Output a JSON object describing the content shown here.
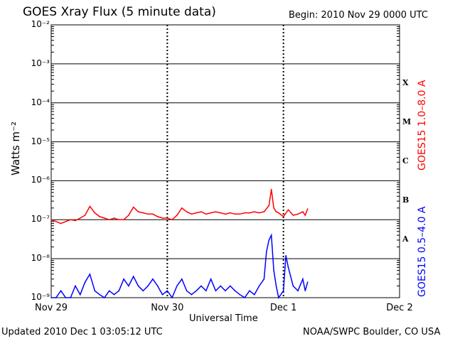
{
  "header": {
    "title": "GOES Xray Flux (5 minute data)",
    "begin": "Begin:  2010 Nov 29 0000 UTC"
  },
  "footer": {
    "updated": "Updated 2010 Dec  1 03:05:12 UTC",
    "credit": "NOAA/SWPC Boulder, CO USA"
  },
  "chart_data": {
    "type": "line",
    "title": "GOES Xray Flux (5 minute data)",
    "xlabel": "Universal Time",
    "ylabel": "Watts m⁻²",
    "y_scale": "log",
    "ylim": [
      1e-09,
      0.01
    ],
    "xlim": [
      0,
      72
    ],
    "x_unit": "hours since 2010 Nov 29 0000 UTC",
    "x_ticks": [
      {
        "x": 0,
        "label": "Nov 29"
      },
      {
        "x": 24,
        "label": "Nov 30"
      },
      {
        "x": 48,
        "label": "Dec 1"
      },
      {
        "x": 72,
        "label": "Dec 2"
      }
    ],
    "y_ticks": [
      {
        "exp": -9,
        "label": "10⁻⁹"
      },
      {
        "exp": -8,
        "label": "10⁻⁸"
      },
      {
        "exp": -7,
        "label": "10⁻⁷"
      },
      {
        "exp": -6,
        "label": "10⁻⁶"
      },
      {
        "exp": -5,
        "label": "10⁻⁵"
      },
      {
        "exp": -4,
        "label": "10⁻⁴"
      },
      {
        "exp": -3,
        "label": "10⁻³"
      },
      {
        "exp": -2,
        "label": "10⁻²"
      }
    ],
    "flare_classes": [
      {
        "label": "X",
        "decade": -4
      },
      {
        "label": "M",
        "decade": -5
      },
      {
        "label": "C",
        "decade": -6
      },
      {
        "label": "B",
        "decade": -7
      },
      {
        "label": "A",
        "decade": -8
      }
    ],
    "grid": true,
    "series": [
      {
        "name": "GOES15 1.0–8.0 A",
        "color": "#ff0000",
        "points": [
          [
            0.0,
            1e-07
          ],
          [
            1.0,
            9e-08
          ],
          [
            2.0,
            8e-08
          ],
          [
            3.0,
            9e-08
          ],
          [
            4.0,
            1e-07
          ],
          [
            5.0,
            9.5e-08
          ],
          [
            6.0,
            1.1e-07
          ],
          [
            7.0,
            1.3e-07
          ],
          [
            8.0,
            2.2e-07
          ],
          [
            9.0,
            1.5e-07
          ],
          [
            10.0,
            1.2e-07
          ],
          [
            11.0,
            1.1e-07
          ],
          [
            12.0,
            1e-07
          ],
          [
            13.0,
            1.1e-07
          ],
          [
            14.0,
            1e-07
          ],
          [
            15.0,
            1e-07
          ],
          [
            16.0,
            1.3e-07
          ],
          [
            17.0,
            2.1e-07
          ],
          [
            18.0,
            1.6e-07
          ],
          [
            19.0,
            1.5e-07
          ],
          [
            20.0,
            1.4e-07
          ],
          [
            21.0,
            1.4e-07
          ],
          [
            22.0,
            1.2e-07
          ],
          [
            23.0,
            1.1e-07
          ],
          [
            24.0,
            1.1e-07
          ],
          [
            25.0,
            1e-07
          ],
          [
            26.0,
            1.3e-07
          ],
          [
            27.0,
            2e-07
          ],
          [
            28.0,
            1.6e-07
          ],
          [
            29.0,
            1.4e-07
          ],
          [
            30.0,
            1.5e-07
          ],
          [
            31.0,
            1.6e-07
          ],
          [
            32.0,
            1.4e-07
          ],
          [
            33.0,
            1.5e-07
          ],
          [
            34.0,
            1.6e-07
          ],
          [
            35.0,
            1.5e-07
          ],
          [
            36.0,
            1.4e-07
          ],
          [
            37.0,
            1.5e-07
          ],
          [
            38.0,
            1.4e-07
          ],
          [
            39.0,
            1.4e-07
          ],
          [
            40.0,
            1.5e-07
          ],
          [
            41.0,
            1.5e-07
          ],
          [
            42.0,
            1.6e-07
          ],
          [
            43.0,
            1.5e-07
          ],
          [
            44.0,
            1.6e-07
          ],
          [
            45.0,
            2.3e-07
          ],
          [
            45.5,
            6e-07
          ],
          [
            46.0,
            2e-07
          ],
          [
            46.5,
            1.6e-07
          ],
          [
            47.0,
            1.5e-07
          ],
          [
            48.0,
            1.2e-07
          ],
          [
            49.0,
            1.8e-07
          ],
          [
            50.0,
            1.3e-07
          ],
          [
            51.0,
            1.4e-07
          ],
          [
            52.0,
            1.6e-07
          ],
          [
            52.5,
            1.3e-07
          ],
          [
            53.0,
            1.9e-07
          ]
        ]
      },
      {
        "name": "GOES15 0.5–4.0 A",
        "color": "#0000ff",
        "points": [
          [
            0.0,
            1e-09
          ],
          [
            1.0,
            1e-09
          ],
          [
            2.0,
            1.5e-09
          ],
          [
            3.0,
            1e-09
          ],
          [
            4.0,
            1e-09
          ],
          [
            5.0,
            2e-09
          ],
          [
            6.0,
            1.2e-09
          ],
          [
            7.0,
            2.5e-09
          ],
          [
            8.0,
            4e-09
          ],
          [
            9.0,
            1.5e-09
          ],
          [
            10.0,
            1.2e-09
          ],
          [
            11.0,
            1e-09
          ],
          [
            12.0,
            1.5e-09
          ],
          [
            13.0,
            1.2e-09
          ],
          [
            14.0,
            1.5e-09
          ],
          [
            15.0,
            3e-09
          ],
          [
            16.0,
            2e-09
          ],
          [
            17.0,
            3.5e-09
          ],
          [
            18.0,
            2e-09
          ],
          [
            19.0,
            1.5e-09
          ],
          [
            20.0,
            2e-09
          ],
          [
            21.0,
            3e-09
          ],
          [
            22.0,
            2e-09
          ],
          [
            23.0,
            1.2e-09
          ],
          [
            24.0,
            1.5e-09
          ],
          [
            25.0,
            1e-09
          ],
          [
            26.0,
            2e-09
          ],
          [
            27.0,
            3e-09
          ],
          [
            28.0,
            1.5e-09
          ],
          [
            29.0,
            1.2e-09
          ],
          [
            30.0,
            1.5e-09
          ],
          [
            31.0,
            2e-09
          ],
          [
            32.0,
            1.5e-09
          ],
          [
            33.0,
            3e-09
          ],
          [
            34.0,
            1.5e-09
          ],
          [
            35.0,
            2e-09
          ],
          [
            36.0,
            1.5e-09
          ],
          [
            37.0,
            2e-09
          ],
          [
            38.0,
            1.5e-09
          ],
          [
            39.0,
            1.2e-09
          ],
          [
            40.0,
            1e-09
          ],
          [
            41.0,
            1.5e-09
          ],
          [
            42.0,
            1.2e-09
          ],
          [
            43.0,
            2e-09
          ],
          [
            44.0,
            3e-09
          ],
          [
            44.5,
            1.5e-08
          ],
          [
            45.0,
            3e-08
          ],
          [
            45.5,
            4e-08
          ],
          [
            46.0,
            5e-09
          ],
          [
            46.5,
            2e-09
          ],
          [
            47.0,
            1e-09
          ],
          [
            48.0,
            1.5e-09
          ],
          [
            48.5,
            1.2e-08
          ],
          [
            49.0,
            6e-09
          ],
          [
            50.0,
            2e-09
          ],
          [
            51.0,
            1.5e-09
          ],
          [
            52.0,
            3e-09
          ],
          [
            52.5,
            1.5e-09
          ],
          [
            53.0,
            2.5e-09
          ]
        ]
      }
    ]
  }
}
